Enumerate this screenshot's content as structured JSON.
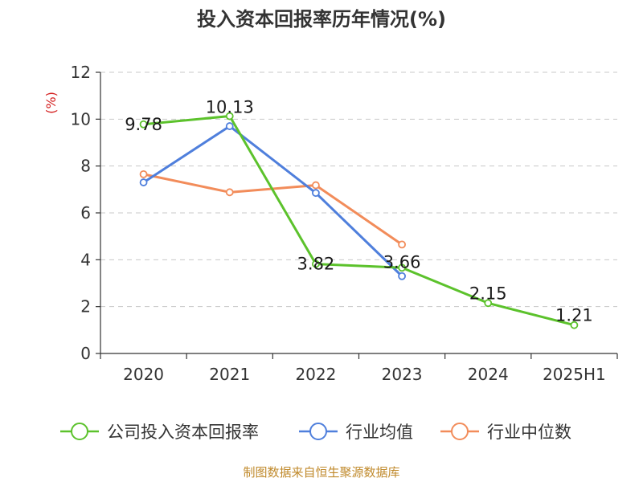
{
  "chart_data": {
    "type": "line",
    "title": "投入资本回报率历年情况(%)",
    "ylabel": "(%)",
    "xlabel": "",
    "categories": [
      "2020",
      "2021",
      "2022",
      "2023",
      "2024",
      "2025H1"
    ],
    "ylim": [
      0,
      12
    ],
    "yticks": [
      0,
      2,
      4,
      6,
      8,
      10,
      12
    ],
    "grid": true,
    "legend_position": "bottom",
    "series": [
      {
        "name": "公司投入资本回报率",
        "color": "#5cc22c",
        "values": [
          9.78,
          10.13,
          3.82,
          3.66,
          2.15,
          1.21
        ],
        "labels": [
          "9.78",
          "10.13",
          "3.82",
          "3.66",
          "2.15",
          "1.21"
        ]
      },
      {
        "name": "行业均值",
        "color": "#4f7fdc",
        "values": [
          7.3,
          9.7,
          6.85,
          3.3,
          null,
          null
        ]
      },
      {
        "name": "行业中位数",
        "color": "#f28c5a",
        "values": [
          7.65,
          6.88,
          7.18,
          4.65,
          null,
          null
        ]
      }
    ]
  },
  "footer": {
    "source": "制图数据来自恒生聚源数据库"
  }
}
